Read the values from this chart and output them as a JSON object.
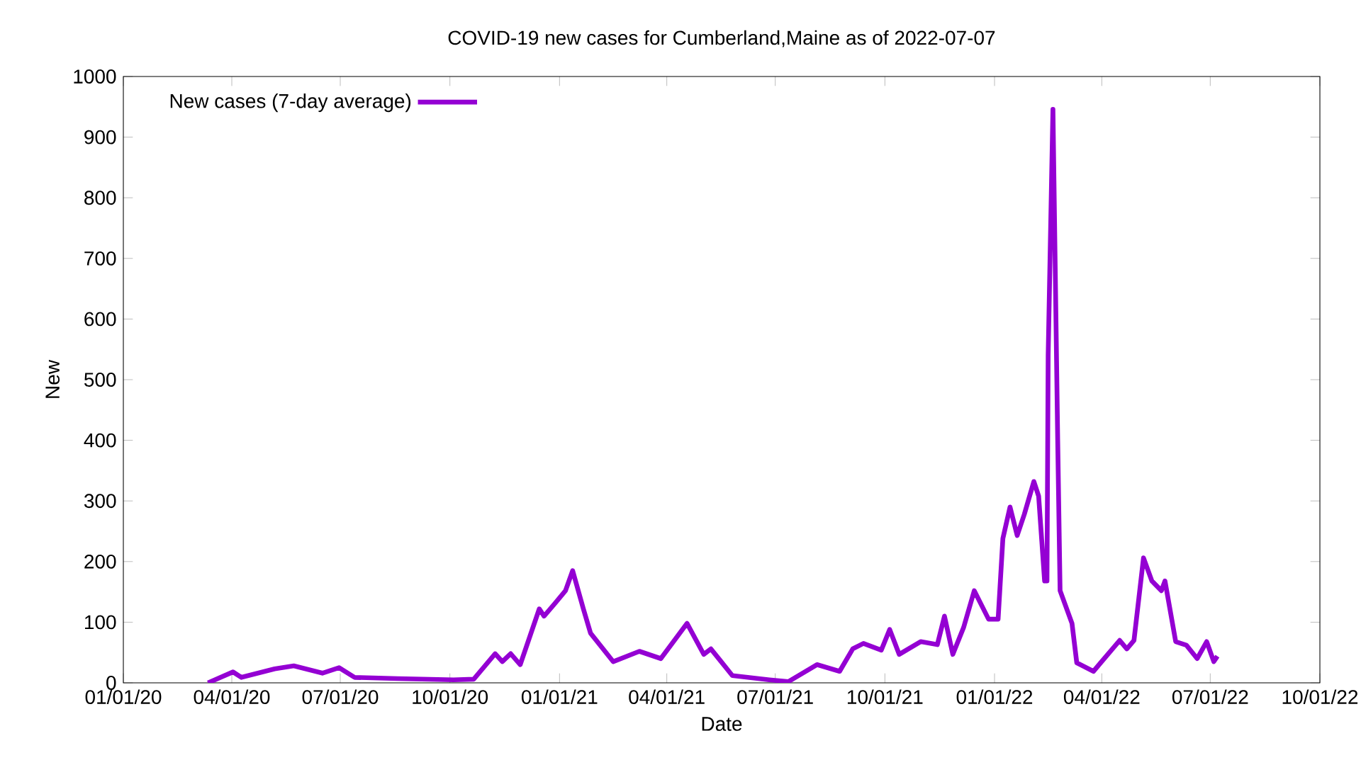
{
  "chart_data": {
    "type": "line",
    "title": "COVID-19 new cases for Cumberland,Maine as of 2022-07-07",
    "xlabel": "Date",
    "ylabel": "New",
    "x": [
      "2020-03-12",
      "2020-04-02",
      "2020-04-09",
      "2020-05-07",
      "2020-05-23",
      "2020-06-16",
      "2020-06-30",
      "2020-07-13",
      "2020-08-18",
      "2020-10-04",
      "2020-10-21",
      "2020-11-08",
      "2020-11-14",
      "2020-11-21",
      "2020-11-29",
      "2020-12-15",
      "2020-12-19",
      "2020-12-29",
      "2021-01-06",
      "2021-01-12",
      "2021-01-21",
      "2021-01-27",
      "2021-02-15",
      "2021-03-09",
      "2021-03-27",
      "2021-04-18",
      "2021-05-02",
      "2021-05-08",
      "2021-05-26",
      "2021-06-26",
      "2021-07-12",
      "2021-08-05",
      "2021-08-24",
      "2021-09-04",
      "2021-09-13",
      "2021-09-28",
      "2021-10-05",
      "2021-10-13",
      "2021-10-31",
      "2021-11-14",
      "2021-11-20",
      "2021-11-27",
      "2021-12-06",
      "2021-12-15",
      "2021-12-27",
      "2022-01-04",
      "2022-01-08",
      "2022-01-14",
      "2022-01-20",
      "2022-01-26",
      "2022-02-03",
      "2022-02-07",
      "2022-02-12",
      "2022-02-14",
      "2022-02-15",
      "2022-02-19",
      "2022-02-23",
      "2022-02-25",
      "2022-03-07",
      "2022-03-11",
      "2022-03-25",
      "2022-03-31",
      "2022-04-16",
      "2022-04-22",
      "2022-04-28",
      "2022-05-06",
      "2022-05-13",
      "2022-05-21",
      "2022-05-24",
      "2022-06-02",
      "2022-06-11",
      "2022-06-20",
      "2022-06-28",
      "2022-07-04",
      "2022-07-07"
    ],
    "series": [
      {
        "name": "New cases (7-day average)",
        "color": "#9400d3",
        "values": [
          0,
          18,
          9,
          23,
          28,
          16,
          25,
          9,
          7,
          5,
          6,
          48,
          35,
          48,
          30,
          122,
          110,
          133,
          152,
          185,
          122,
          82,
          35,
          52,
          40,
          98,
          47,
          56,
          12,
          5,
          2,
          30,
          19,
          56,
          65,
          54,
          88,
          47,
          68,
          63,
          110,
          47,
          91,
          152,
          105,
          105,
          238,
          290,
          243,
          278,
          332,
          308,
          168,
          168,
          540,
          946,
          400,
          152,
          98,
          33,
          19,
          33,
          70,
          56,
          70,
          206,
          168,
          152,
          168,
          68,
          62,
          40,
          68,
          35,
          44
        ]
      }
    ],
    "xlim": [
      "2020-01-01",
      "2022-10-01"
    ],
    "xticks": [
      {
        "value": "2020-01-01",
        "label": "01/01/20"
      },
      {
        "value": "2020-04-01",
        "label": "04/01/20"
      },
      {
        "value": "2020-07-01",
        "label": "07/01/20"
      },
      {
        "value": "2020-10-01",
        "label": "10/01/20"
      },
      {
        "value": "2021-01-01",
        "label": "01/01/21"
      },
      {
        "value": "2021-04-01",
        "label": "04/01/21"
      },
      {
        "value": "2021-07-01",
        "label": "07/01/21"
      },
      {
        "value": "2021-10-01",
        "label": "10/01/21"
      },
      {
        "value": "2022-01-01",
        "label": "01/01/22"
      },
      {
        "value": "2022-04-01",
        "label": "04/01/22"
      },
      {
        "value": "2022-07-01",
        "label": "07/01/22"
      },
      {
        "value": "2022-10-01",
        "label": "10/01/22"
      }
    ],
    "ylim": [
      0,
      1000
    ],
    "yticks": [
      0,
      100,
      200,
      300,
      400,
      500,
      600,
      700,
      800,
      900,
      1000
    ],
    "legend": "top left",
    "grid": false,
    "line_style": "solid"
  }
}
